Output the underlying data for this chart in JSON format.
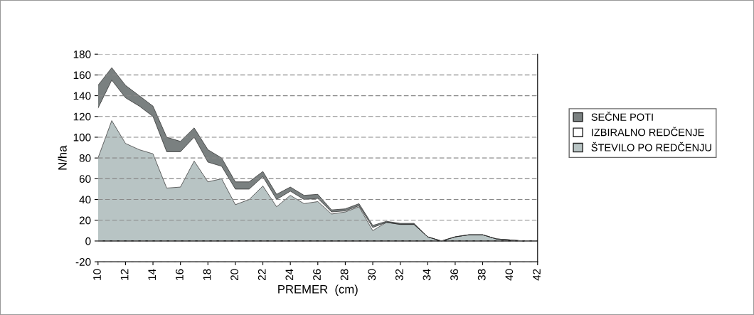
{
  "chart_data": {
    "type": "area",
    "stacked": true,
    "xlabel": "PREMER  (cm)",
    "ylabel": "N/ha",
    "x": [
      10,
      11,
      12,
      13,
      14,
      15,
      16,
      17,
      18,
      19,
      20,
      21,
      22,
      23,
      24,
      25,
      26,
      27,
      28,
      29,
      30,
      31,
      32,
      33,
      34,
      35,
      36,
      37,
      38,
      39,
      40,
      41
    ],
    "series": [
      {
        "name": "ŠTEVILO PO REDČENJU",
        "color": "#b8c4c4",
        "values": [
          80,
          116,
          94,
          88,
          84,
          51,
          52,
          77,
          57,
          60,
          35,
          40,
          53,
          33,
          44,
          36,
          38,
          26,
          28,
          33,
          10,
          18,
          16,
          16,
          4,
          0,
          4,
          6,
          6,
          2,
          1,
          0
        ]
      },
      {
        "name": "IZBIRALNO REDČENJE",
        "color": "#ffffff",
        "values": [
          48,
          39,
          44,
          42,
          36,
          35,
          34,
          23,
          19,
          12,
          15,
          10,
          9,
          7,
          4,
          4,
          3,
          2,
          1,
          1,
          3,
          0,
          0,
          0,
          0,
          0,
          0,
          0,
          0,
          0,
          0,
          0
        ]
      },
      {
        "name": "SEČNE POTI",
        "color": "#7a8080",
        "values": [
          22,
          12,
          12,
          10,
          10,
          14,
          10,
          9,
          12,
          8,
          7,
          7,
          5,
          5,
          4,
          4,
          4,
          2,
          2,
          2,
          2,
          1,
          1,
          1,
          0,
          0,
          0,
          0,
          0,
          0,
          0,
          0
        ]
      }
    ],
    "xlim": [
      10,
      42
    ],
    "xticks": [
      10,
      12,
      14,
      16,
      18,
      20,
      22,
      24,
      26,
      28,
      30,
      32,
      34,
      36,
      38,
      40,
      42
    ],
    "ylim": [
      -20,
      180
    ],
    "yticks": [
      -20,
      0,
      20,
      40,
      60,
      80,
      100,
      120,
      140,
      160,
      180
    ],
    "grid": "y",
    "legend": "right"
  }
}
